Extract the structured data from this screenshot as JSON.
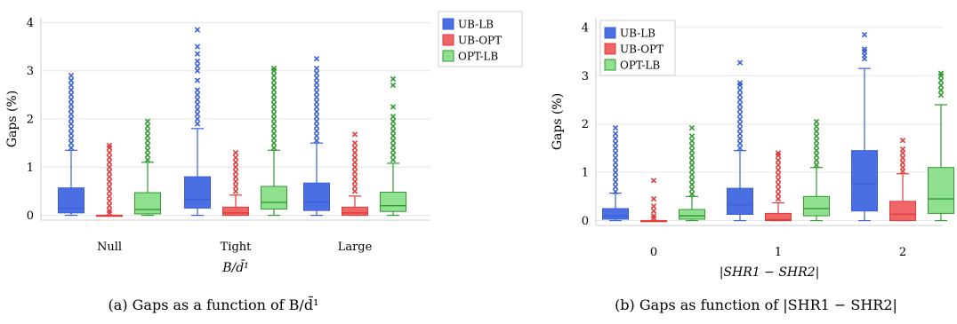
{
  "chart_data": [
    {
      "type": "box",
      "caption": "(a) Gaps as a function of B/d̄¹",
      "xlabel": "B/d̄¹",
      "ylabel": "Gaps (%)",
      "ylim": [
        -0.1,
        4.1
      ],
      "yticks": [
        0,
        1,
        2,
        3,
        4
      ],
      "categories": [
        "Null",
        "Tight",
        "Large"
      ],
      "legend_position": "top-right, outside plot",
      "series": [
        {
          "name": "UB-LB",
          "color": "#3a5fd8",
          "fill": "#4a6fe3",
          "boxes": [
            {
              "whisker_low": 0.0,
              "q1": 0.05,
              "median": 0.15,
              "q3": 0.57,
              "whisker_high": 1.35,
              "outliers": [
                1.4,
                1.5,
                1.6,
                1.7,
                1.8,
                1.9,
                2.0,
                2.1,
                2.2,
                2.3,
                2.4,
                2.5,
                2.6,
                2.7,
                2.8,
                2.9
              ]
            },
            {
              "whisker_low": 0.0,
              "q1": 0.15,
              "median": 0.33,
              "q3": 0.8,
              "whisker_high": 1.8,
              "outliers": [
                1.9,
                2.0,
                2.1,
                2.2,
                2.3,
                2.4,
                2.5,
                2.6,
                2.8,
                3.0,
                3.1,
                3.2,
                3.35,
                3.5,
                3.85
              ]
            },
            {
              "whisker_low": 0.0,
              "q1": 0.1,
              "median": 0.28,
              "q3": 0.67,
              "whisker_high": 1.5,
              "outliers": [
                1.55,
                1.65,
                1.75,
                1.85,
                1.95,
                2.05,
                2.15,
                2.25,
                2.35,
                2.45,
                2.55,
                2.65,
                2.75,
                2.85,
                2.95,
                3.05,
                3.25
              ]
            }
          ]
        },
        {
          "name": "UB-OPT",
          "color": "#e03b3b",
          "fill": "#f06565",
          "boxes": [
            {
              "whisker_low": 0.0,
              "q1": 0.0,
              "median": 0.0,
              "q3": 0.0,
              "whisker_high": 0.0,
              "outliers": [
                0.05,
                0.1,
                0.2,
                0.3,
                0.4,
                0.5,
                0.6,
                0.7,
                0.8,
                0.9,
                1.0,
                1.1,
                1.2,
                1.3,
                1.4,
                1.45
              ]
            },
            {
              "whisker_low": 0.0,
              "q1": 0.0,
              "median": 0.05,
              "q3": 0.17,
              "whisker_high": 0.42,
              "outliers": [
                0.5,
                0.6,
                0.7,
                0.8,
                0.9,
                1.0,
                1.1,
                1.2,
                1.3
              ]
            },
            {
              "whisker_low": 0.0,
              "q1": 0.0,
              "median": 0.05,
              "q3": 0.17,
              "whisker_high": 0.4,
              "outliers": [
                0.5,
                0.6,
                0.7,
                0.8,
                0.9,
                1.0,
                1.1,
                1.2,
                1.3,
                1.4,
                1.5,
                1.68
              ]
            }
          ]
        },
        {
          "name": "OPT-LB",
          "color": "#2f9a2f",
          "fill": "#8fe08f",
          "boxes": [
            {
              "whisker_low": 0.0,
              "q1": 0.03,
              "median": 0.12,
              "q3": 0.47,
              "whisker_high": 1.1,
              "outliers": [
                1.15,
                1.25,
                1.35,
                1.45,
                1.55,
                1.65,
                1.75,
                1.85,
                1.95
              ]
            },
            {
              "whisker_low": 0.0,
              "q1": 0.13,
              "median": 0.27,
              "q3": 0.6,
              "whisker_high": 1.35,
              "outliers": [
                1.4,
                1.5,
                1.6,
                1.7,
                1.8,
                1.9,
                2.0,
                2.1,
                2.2,
                2.3,
                2.4,
                2.5,
                2.6,
                2.7,
                2.8,
                2.9,
                3.0,
                3.05
              ]
            },
            {
              "whisker_low": 0.0,
              "q1": 0.08,
              "median": 0.2,
              "q3": 0.48,
              "whisker_high": 1.08,
              "outliers": [
                1.15,
                1.25,
                1.35,
                1.45,
                1.55,
                1.65,
                1.75,
                1.85,
                1.95,
                2.05,
                2.25,
                2.7,
                2.83
              ]
            }
          ]
        }
      ]
    },
    {
      "type": "box",
      "caption": "(b) Gaps as function of |SHR1 − SHR2|",
      "xlabel": "|SHR1 − SHR2|",
      "ylabel": "Gaps (%)",
      "ylim": [
        -0.1,
        4.2
      ],
      "yticks": [
        0,
        1,
        2,
        3,
        4
      ],
      "categories": [
        "0",
        "1",
        "2"
      ],
      "legend_position": "top-left, inside plot",
      "series": [
        {
          "name": "UB-LB",
          "color": "#3a5fd8",
          "fill": "#4a6fe3",
          "boxes": [
            {
              "whisker_low": 0.0,
              "q1": 0.03,
              "median": 0.1,
              "q3": 0.25,
              "whisker_high": 0.57,
              "outliers": [
                0.6,
                0.7,
                0.8,
                0.9,
                1.0,
                1.1,
                1.2,
                1.3,
                1.4,
                1.5,
                1.6,
                1.7,
                1.8,
                1.92
              ]
            },
            {
              "whisker_low": 0.0,
              "q1": 0.13,
              "median": 0.33,
              "q3": 0.67,
              "whisker_high": 1.45,
              "outliers": [
                1.5,
                1.6,
                1.7,
                1.8,
                1.9,
                2.0,
                2.1,
                2.2,
                2.3,
                2.4,
                2.5,
                2.6,
                2.7,
                2.8,
                2.85,
                3.27
              ]
            },
            {
              "whisker_low": 0.0,
              "q1": 0.2,
              "median": 0.76,
              "q3": 1.45,
              "whisker_high": 3.15,
              "outliers": [
                3.35,
                3.42,
                3.5,
                3.55,
                3.85
              ]
            }
          ]
        },
        {
          "name": "UB-OPT",
          "color": "#e03b3b",
          "fill": "#f06565",
          "boxes": [
            {
              "whisker_low": 0.0,
              "q1": 0.0,
              "median": 0.0,
              "q3": 0.0,
              "whisker_high": 0.0,
              "outliers": [
                0.05,
                0.1,
                0.2,
                0.3,
                0.45,
                0.83
              ]
            },
            {
              "whisker_low": 0.0,
              "q1": 0.0,
              "median": 0.02,
              "q3": 0.15,
              "whisker_high": 0.37,
              "outliers": [
                0.45,
                0.55,
                0.65,
                0.75,
                0.85,
                0.95,
                1.05,
                1.15,
                1.25,
                1.35,
                1.4
              ]
            },
            {
              "whisker_low": 0.0,
              "q1": 0.0,
              "median": 0.13,
              "q3": 0.4,
              "whisker_high": 0.97,
              "outliers": [
                1.02,
                1.1,
                1.2,
                1.3,
                1.4,
                1.48,
                1.66
              ]
            }
          ]
        },
        {
          "name": "OPT-LB",
          "color": "#2f9a2f",
          "fill": "#8fe08f",
          "boxes": [
            {
              "whisker_low": 0.0,
              "q1": 0.03,
              "median": 0.1,
              "q3": 0.23,
              "whisker_high": 0.5,
              "outliers": [
                0.55,
                0.65,
                0.75,
                0.85,
                0.95,
                1.05,
                1.15,
                1.25,
                1.35,
                1.45,
                1.55,
                1.65,
                1.75,
                1.92
              ]
            },
            {
              "whisker_low": 0.0,
              "q1": 0.1,
              "median": 0.25,
              "q3": 0.5,
              "whisker_high": 1.1,
              "outliers": [
                1.15,
                1.25,
                1.35,
                1.45,
                1.55,
                1.65,
                1.75,
                1.85,
                1.95,
                2.05
              ]
            },
            {
              "whisker_low": 0.0,
              "q1": 0.15,
              "median": 0.45,
              "q3": 1.1,
              "whisker_high": 2.4,
              "outliers": [
                2.6,
                2.7,
                2.8,
                2.9,
                3.0,
                3.05
              ]
            }
          ]
        }
      ]
    }
  ]
}
